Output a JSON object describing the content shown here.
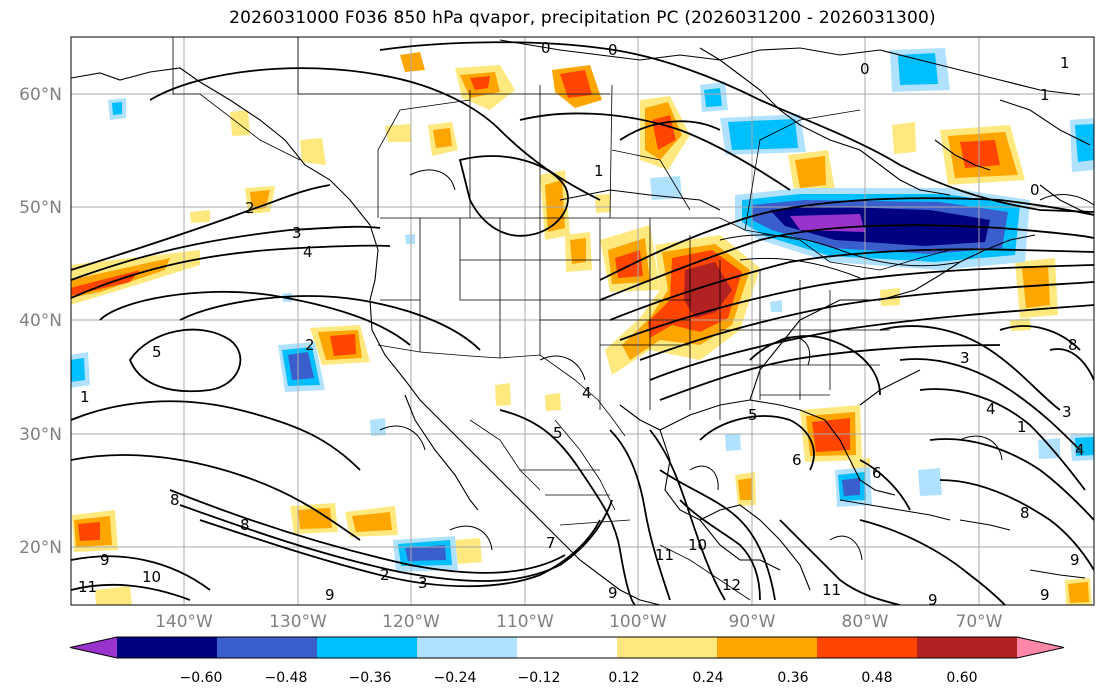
{
  "title": "2026031000 F036 850 hPa qvapor, precipitation PC (2026031200 - 2026031300)",
  "lat_labels": [
    "60°N",
    "50°N",
    "40°N",
    "30°N",
    "20°N"
  ],
  "lon_labels": [
    "140°W",
    "130°W",
    "120°W",
    "110°W",
    "100°W",
    "90°W",
    "80°W",
    "70°W"
  ],
  "colorbar": {
    "tick_labels": [
      "−0.60",
      "−0.48",
      "−0.36",
      "−0.24",
      "−0.12",
      "0.12",
      "0.24",
      "0.36",
      "0.48",
      "0.60"
    ],
    "colors": [
      "#9933cc",
      "#000080",
      "#3a5fcd",
      "#00bfff",
      "#b0e2ff",
      "#ffffff",
      "#ffe97f",
      "#ffa500",
      "#ff4500",
      "#b22222",
      "#ff88aa"
    ]
  },
  "contour_labels": [
    "0",
    "0",
    "1",
    "0",
    "1",
    "0",
    "1",
    "2",
    "3",
    "4",
    "2",
    "3",
    "5",
    "1",
    "4",
    "5",
    "3",
    "4",
    "1",
    "4",
    "5",
    "6",
    "7",
    "8",
    "9",
    "10",
    "11",
    "6",
    "8",
    "9",
    "8",
    "9",
    "11",
    "10",
    "12",
    "11",
    "9",
    "8",
    "2",
    "3",
    "9",
    "9"
  ],
  "colors": {
    "grid": "#a9a9a9",
    "axis_labels": "#808080",
    "coast": "#000000",
    "contour": "#000000"
  }
}
